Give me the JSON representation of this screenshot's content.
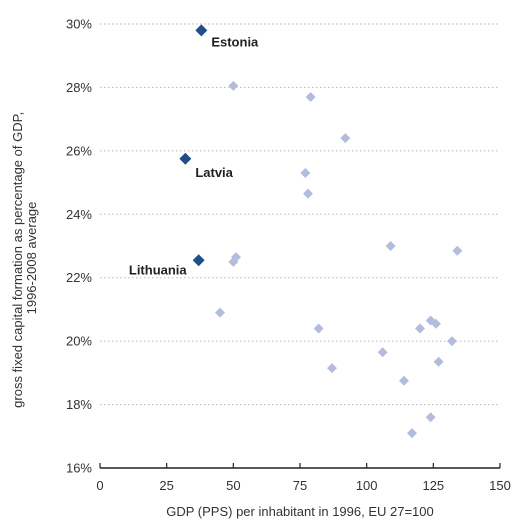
{
  "chart_data": {
    "type": "scatter",
    "title": "",
    "xlabel": "GDP (PPS) per inhabitant in 1996, EU 27=100",
    "ylabel_lines": [
      "gross fixed capital formation as percentage of GDP,",
      "1996-2008 average"
    ],
    "xlim": [
      0,
      150
    ],
    "ylim": [
      16,
      30
    ],
    "x_ticks": [
      0,
      25,
      50,
      75,
      100,
      125,
      150
    ],
    "y_ticks": [
      16,
      18,
      20,
      22,
      24,
      26,
      28,
      30
    ],
    "y_tick_suffix": "%",
    "grid": "horizontal dotted",
    "highlight_color": "#1f4e89",
    "other_color": "#b4bcde",
    "highlighted": [
      {
        "label": "Estonia",
        "x": 38,
        "y": 29.8
      },
      {
        "label": "Latvia",
        "x": 32,
        "y": 25.75
      },
      {
        "label": "Lithuania",
        "x": 37,
        "y": 22.55
      }
    ],
    "others": [
      {
        "x": 50,
        "y": 28.05
      },
      {
        "x": 79,
        "y": 27.7
      },
      {
        "x": 92,
        "y": 26.4
      },
      {
        "x": 77,
        "y": 25.3
      },
      {
        "x": 78,
        "y": 24.65
      },
      {
        "x": 109,
        "y": 23.0
      },
      {
        "x": 134,
        "y": 22.85
      },
      {
        "x": 51,
        "y": 22.65
      },
      {
        "x": 50,
        "y": 22.5
      },
      {
        "x": 45,
        "y": 20.9
      },
      {
        "x": 82,
        "y": 20.4
      },
      {
        "x": 87,
        "y": 19.15
      },
      {
        "x": 106,
        "y": 19.65
      },
      {
        "x": 114,
        "y": 18.75
      },
      {
        "x": 117,
        "y": 17.1
      },
      {
        "x": 124,
        "y": 17.6
      },
      {
        "x": 120,
        "y": 20.4
      },
      {
        "x": 124,
        "y": 20.65
      },
      {
        "x": 126,
        "y": 20.55
      },
      {
        "x": 127,
        "y": 19.35
      },
      {
        "x": 132,
        "y": 20.0
      }
    ]
  }
}
